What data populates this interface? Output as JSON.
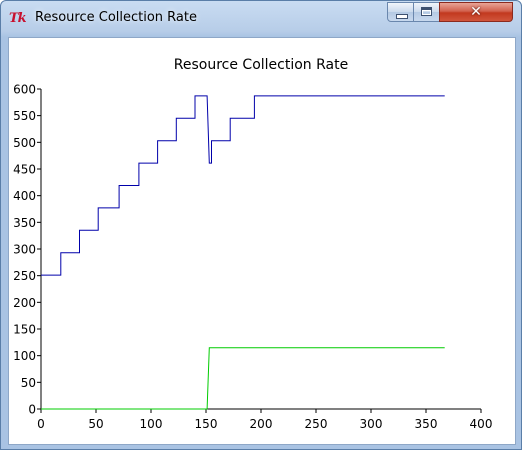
{
  "window": {
    "title": "Resource Collection Rate",
    "app_icon_label": "Tk",
    "controls": {
      "minimize": "minimize",
      "maximize": "maximize",
      "close": "✕"
    }
  },
  "chart_data": {
    "type": "line",
    "title": "Resource Collection Rate",
    "xlabel": "",
    "ylabel": "",
    "xlim": [
      0,
      400
    ],
    "ylim": [
      0,
      600
    ],
    "x_ticks": [
      0,
      50,
      100,
      150,
      200,
      250,
      300,
      350,
      400
    ],
    "y_ticks": [
      0,
      50,
      100,
      150,
      200,
      250,
      300,
      350,
      400,
      450,
      500,
      550,
      600
    ],
    "grid": false,
    "series": [
      {
        "color": "#0000aa",
        "points": [
          [
            0,
            251
          ],
          [
            18,
            251
          ],
          [
            18,
            293
          ],
          [
            35,
            293
          ],
          [
            35,
            335
          ],
          [
            52,
            335
          ],
          [
            52,
            377
          ],
          [
            71,
            377
          ],
          [
            71,
            419
          ],
          [
            89,
            419
          ],
          [
            89,
            461
          ],
          [
            106,
            461
          ],
          [
            106,
            503
          ],
          [
            123,
            503
          ],
          [
            123,
            545
          ],
          [
            140,
            545
          ],
          [
            140,
            587
          ],
          [
            151,
            587
          ],
          [
            153,
            461
          ],
          [
            155,
            461
          ],
          [
            155,
            503
          ],
          [
            172,
            503
          ],
          [
            172,
            545
          ],
          [
            194,
            545
          ],
          [
            194,
            587
          ],
          [
            367,
            587
          ]
        ]
      },
      {
        "color": "#00cc00",
        "points": [
          [
            0,
            0
          ],
          [
            151,
            0
          ],
          [
            153,
            115
          ],
          [
            367,
            115
          ]
        ]
      }
    ]
  }
}
